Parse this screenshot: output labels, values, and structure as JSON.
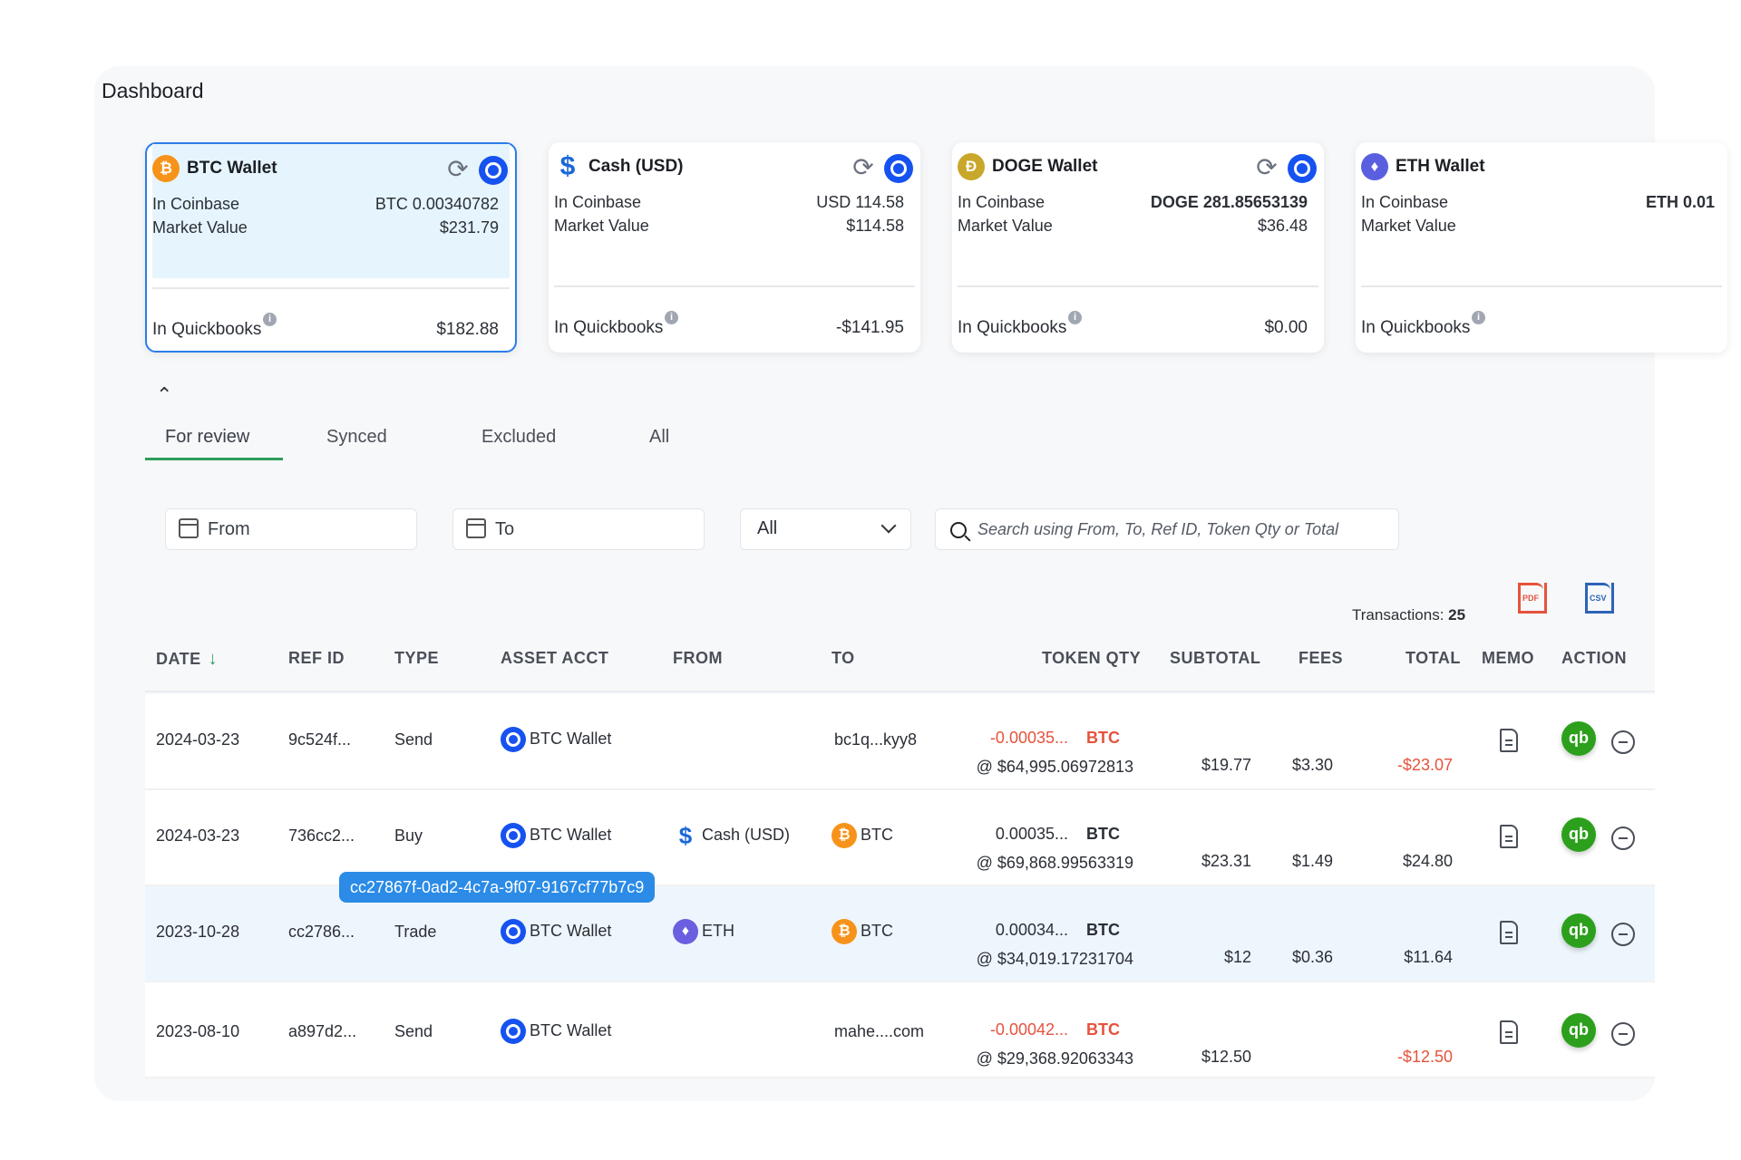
{
  "page": {
    "title": "Dashboard"
  },
  "cards": [
    {
      "name": "BTC Wallet",
      "coin_icon": "btc-icon",
      "coin_glyph": "₿",
      "in_coinbase_label": "In Coinbase",
      "in_coinbase_value": "BTC 0.00340782",
      "market_label": "Market Value",
      "market_value": "$231.79",
      "qb_label": "In Quickbooks",
      "qb_value": "$182.88"
    },
    {
      "name": "Cash (USD)",
      "coin_icon": "dollar-icon",
      "coin_glyph": "$",
      "in_coinbase_label": "In Coinbase",
      "in_coinbase_value": "USD 114.58",
      "market_label": "Market Value",
      "market_value": "$114.58",
      "qb_label": "In Quickbooks",
      "qb_value": "-$141.95"
    },
    {
      "name": "DOGE Wallet",
      "coin_icon": "doge-icon",
      "coin_glyph": "Ð",
      "in_coinbase_label": "In Coinbase",
      "in_coinbase_value": "DOGE 281.85653139",
      "market_label": "Market Value",
      "market_value": "$36.48",
      "qb_label": "In Quickbooks",
      "qb_value": "$0.00"
    },
    {
      "name": "ETH Wallet",
      "coin_icon": "eth-icon",
      "coin_glyph": "♦",
      "in_coinbase_label": "In Coinbase",
      "in_coinbase_value": "ETH 0.01",
      "market_label": "Market Value",
      "market_value": "",
      "qb_label": "In Quickbooks",
      "qb_value": ""
    }
  ],
  "tabs": [
    "For review",
    "Synced",
    "Excluded",
    "All"
  ],
  "filters": {
    "from_label": "From",
    "to_label": "To",
    "type_selected": "All",
    "search_placeholder": "Search using From, To, Ref ID, Token Qty or Total"
  },
  "transactions": {
    "label": "Transactions:",
    "count": "25"
  },
  "export": {
    "pdf_glyph": "PDF",
    "csv_glyph": "CSV"
  },
  "columns": [
    "DATE",
    "REF ID",
    "TYPE",
    "ASSET ACCT",
    "FROM",
    "TO",
    "TOKEN QTY",
    "SUBTOTAL",
    "FEES",
    "TOTAL",
    "MEMO",
    "ACTION"
  ],
  "rows": [
    {
      "date": "2024-03-23",
      "ref_id": "9c524f...",
      "type": "Send",
      "asset": "BTC Wallet",
      "from": "",
      "from_icon": "",
      "to": "bc1q...kyy8",
      "to_icon": "",
      "qty": "-0.00035...",
      "qty_neg": true,
      "token": "BTC",
      "rate": "@ $64,995.06972813",
      "subtotal": "$19.77",
      "fees": "$3.30",
      "total": "-$23.07",
      "total_neg": true
    },
    {
      "date": "2024-03-23",
      "ref_id": "736cc2...",
      "type": "Buy",
      "asset": "BTC Wallet",
      "from": "Cash (USD)",
      "from_icon": "usd",
      "to": "BTC",
      "to_icon": "btc",
      "qty": "0.00035...",
      "qty_neg": false,
      "token": "BTC",
      "rate": "@ $69,868.99563319",
      "subtotal": "$23.31",
      "fees": "$1.49",
      "total": "$24.80",
      "total_neg": false
    },
    {
      "date": "2023-10-28",
      "ref_id": "cc2786...",
      "type": "Trade",
      "asset": "BTC Wallet",
      "from": "ETH",
      "from_icon": "eth",
      "to": "BTC",
      "to_icon": "btc",
      "qty": "0.00034...",
      "qty_neg": false,
      "token": "BTC",
      "rate": "@ $34,019.17231704",
      "subtotal": "$12",
      "fees": "$0.36",
      "total": "$11.64",
      "total_neg": false,
      "tooltip": "cc27867f-0ad2-4c7a-9f07-9167cf77b7c9"
    },
    {
      "date": "2023-08-10",
      "ref_id": "a897d2...",
      "type": "Send",
      "asset": "BTC Wallet",
      "from": "",
      "from_icon": "",
      "to": "mahe....com",
      "to_icon": "",
      "qty": "-0.00042...",
      "qty_neg": true,
      "token": "BTC",
      "rate": "@ $29,368.92063343",
      "subtotal": "$12.50",
      "fees": "",
      "total": "-$12.50",
      "total_neg": true
    }
  ],
  "action_glyphs": {
    "quickbooks": "qb"
  }
}
